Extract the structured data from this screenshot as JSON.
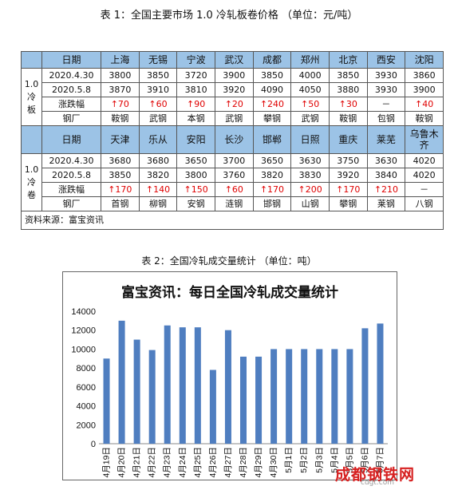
{
  "title1": "表 1：全国主要市场 1.0 冷轧板卷价格 （单位：元/吨）",
  "table": {
    "block1": {
      "side_label": [
        "1.0",
        "冷",
        "板"
      ],
      "header": [
        "日期",
        "上海",
        "无锡",
        "宁波",
        "武汉",
        "成都",
        "郑州",
        "北京",
        "西安",
        "沈阳"
      ],
      "rows": [
        [
          "2020.4.30",
          "3800",
          "3850",
          "3720",
          "3900",
          "3850",
          "4000",
          "3850",
          "3930",
          "3860"
        ],
        [
          "2020.5.8",
          "3870",
          "3910",
          "3810",
          "3920",
          "4090",
          "4050",
          "3880",
          "3930",
          "3900"
        ],
        [
          "涨跌幅",
          "↑70",
          "↑60",
          "↑90",
          "↑20",
          "↑240",
          "↑50",
          "↑30",
          "－",
          "↑40"
        ],
        [
          "钢厂",
          "鞍钢",
          "武钢",
          "本钢",
          "武钢",
          "攀钢",
          "武钢",
          "鞍钢",
          "包钢",
          "鞍钢"
        ]
      ]
    },
    "block2": {
      "side_label": [
        "1.0",
        "冷",
        "卷"
      ],
      "header": [
        "日期",
        "天津",
        "乐从",
        "安阳",
        "长沙",
        "邯郸",
        "日照",
        "重庆",
        "莱芜",
        "乌鲁木齐"
      ],
      "rows": [
        [
          "2020.4.30",
          "3680",
          "3680",
          "3650",
          "3700",
          "3650",
          "3630",
          "3750",
          "3630",
          "4020"
        ],
        [
          "2020.5.8",
          "3850",
          "3820",
          "3800",
          "3760",
          "3820",
          "3830",
          "3920",
          "3840",
          "4020"
        ],
        [
          "涨跌幅",
          "↑170",
          "↑140",
          "↑150",
          "↑60",
          "↑170",
          "↑200",
          "↑170",
          "↑210",
          "－"
        ],
        [
          "钢厂",
          "首钢",
          "柳钢",
          "安钢",
          "涟钢",
          "邯钢",
          "山钢",
          "攀钢",
          "莱钢",
          "八钢"
        ]
      ]
    },
    "source": "资料来源：富宝资讯"
  },
  "title2": "表 2：全国冷轧成交量统计 （单位：吨）",
  "colors": {
    "header_bg": "#9cc3e6",
    "up": "#e00000",
    "bar": "#4f7ec0",
    "chart_title_bg": "#ffffff",
    "watermark": "#d62020"
  },
  "chart_data": {
    "type": "bar",
    "title": "富宝资讯：每日全国冷轧成交量统计",
    "categories": [
      "4月19日",
      "4月20日",
      "4月21日",
      "4月22日",
      "4月23日",
      "4月24日",
      "4月25日",
      "4月26日",
      "4月27日",
      "4月28日",
      "4月29日",
      "4月30日",
      "5月1日",
      "5月2日",
      "5月3日",
      "5月4日",
      "5月5日",
      "5月6日",
      "5月7日"
    ],
    "values": [
      9000,
      13000,
      11000,
      9900,
      12500,
      12300,
      12300,
      7800,
      12000,
      9200,
      9200,
      10000,
      10000,
      10000,
      10000,
      10000,
      10000,
      12200,
      12700
    ],
    "ylim": [
      0,
      14000
    ],
    "yticks": [
      0,
      2000,
      4000,
      6000,
      8000,
      10000,
      12000,
      14000
    ],
    "grid": false
  },
  "watermark": "成都钢铁网",
  "watermark_sub": "cdgt.com"
}
